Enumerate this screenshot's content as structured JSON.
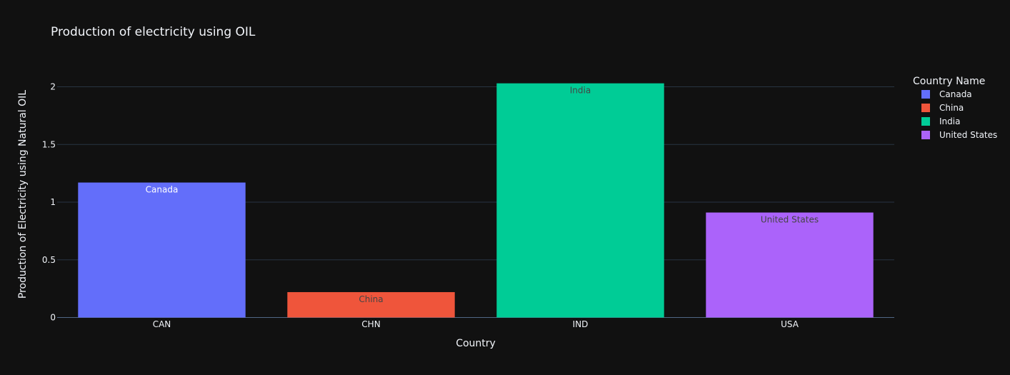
{
  "chart_data": {
    "type": "bar",
    "title": "Production of electricity using OIL",
    "xlabel": "Country",
    "ylabel": "Production of Electricity using Natural OIL",
    "categories": [
      "CAN",
      "CHN",
      "IND",
      "USA"
    ],
    "series": [
      {
        "name": "Canada",
        "category": "CAN",
        "value": 1.17,
        "color": "#636efa",
        "label_color": "#ffffff"
      },
      {
        "name": "China",
        "category": "CHN",
        "value": 0.22,
        "color": "#ef553b",
        "label_color": "#444444"
      },
      {
        "name": "India",
        "category": "IND",
        "value": 2.03,
        "color": "#00cc96",
        "label_color": "#444444"
      },
      {
        "name": "United States",
        "category": "USA",
        "value": 0.91,
        "color": "#ab63fa",
        "label_color": "#444444"
      }
    ],
    "ylim": [
      0,
      2.0
    ],
    "yticks": [
      {
        "value": 0,
        "label": "0"
      },
      {
        "value": 0.5,
        "label": "0.5"
      },
      {
        "value": 1,
        "label": "1"
      },
      {
        "value": 1.5,
        "label": "1.5"
      },
      {
        "value": 2,
        "label": "2"
      }
    ],
    "legend_title": "Country Name",
    "legend_position": "right",
    "grid": true,
    "background": "#111111"
  }
}
